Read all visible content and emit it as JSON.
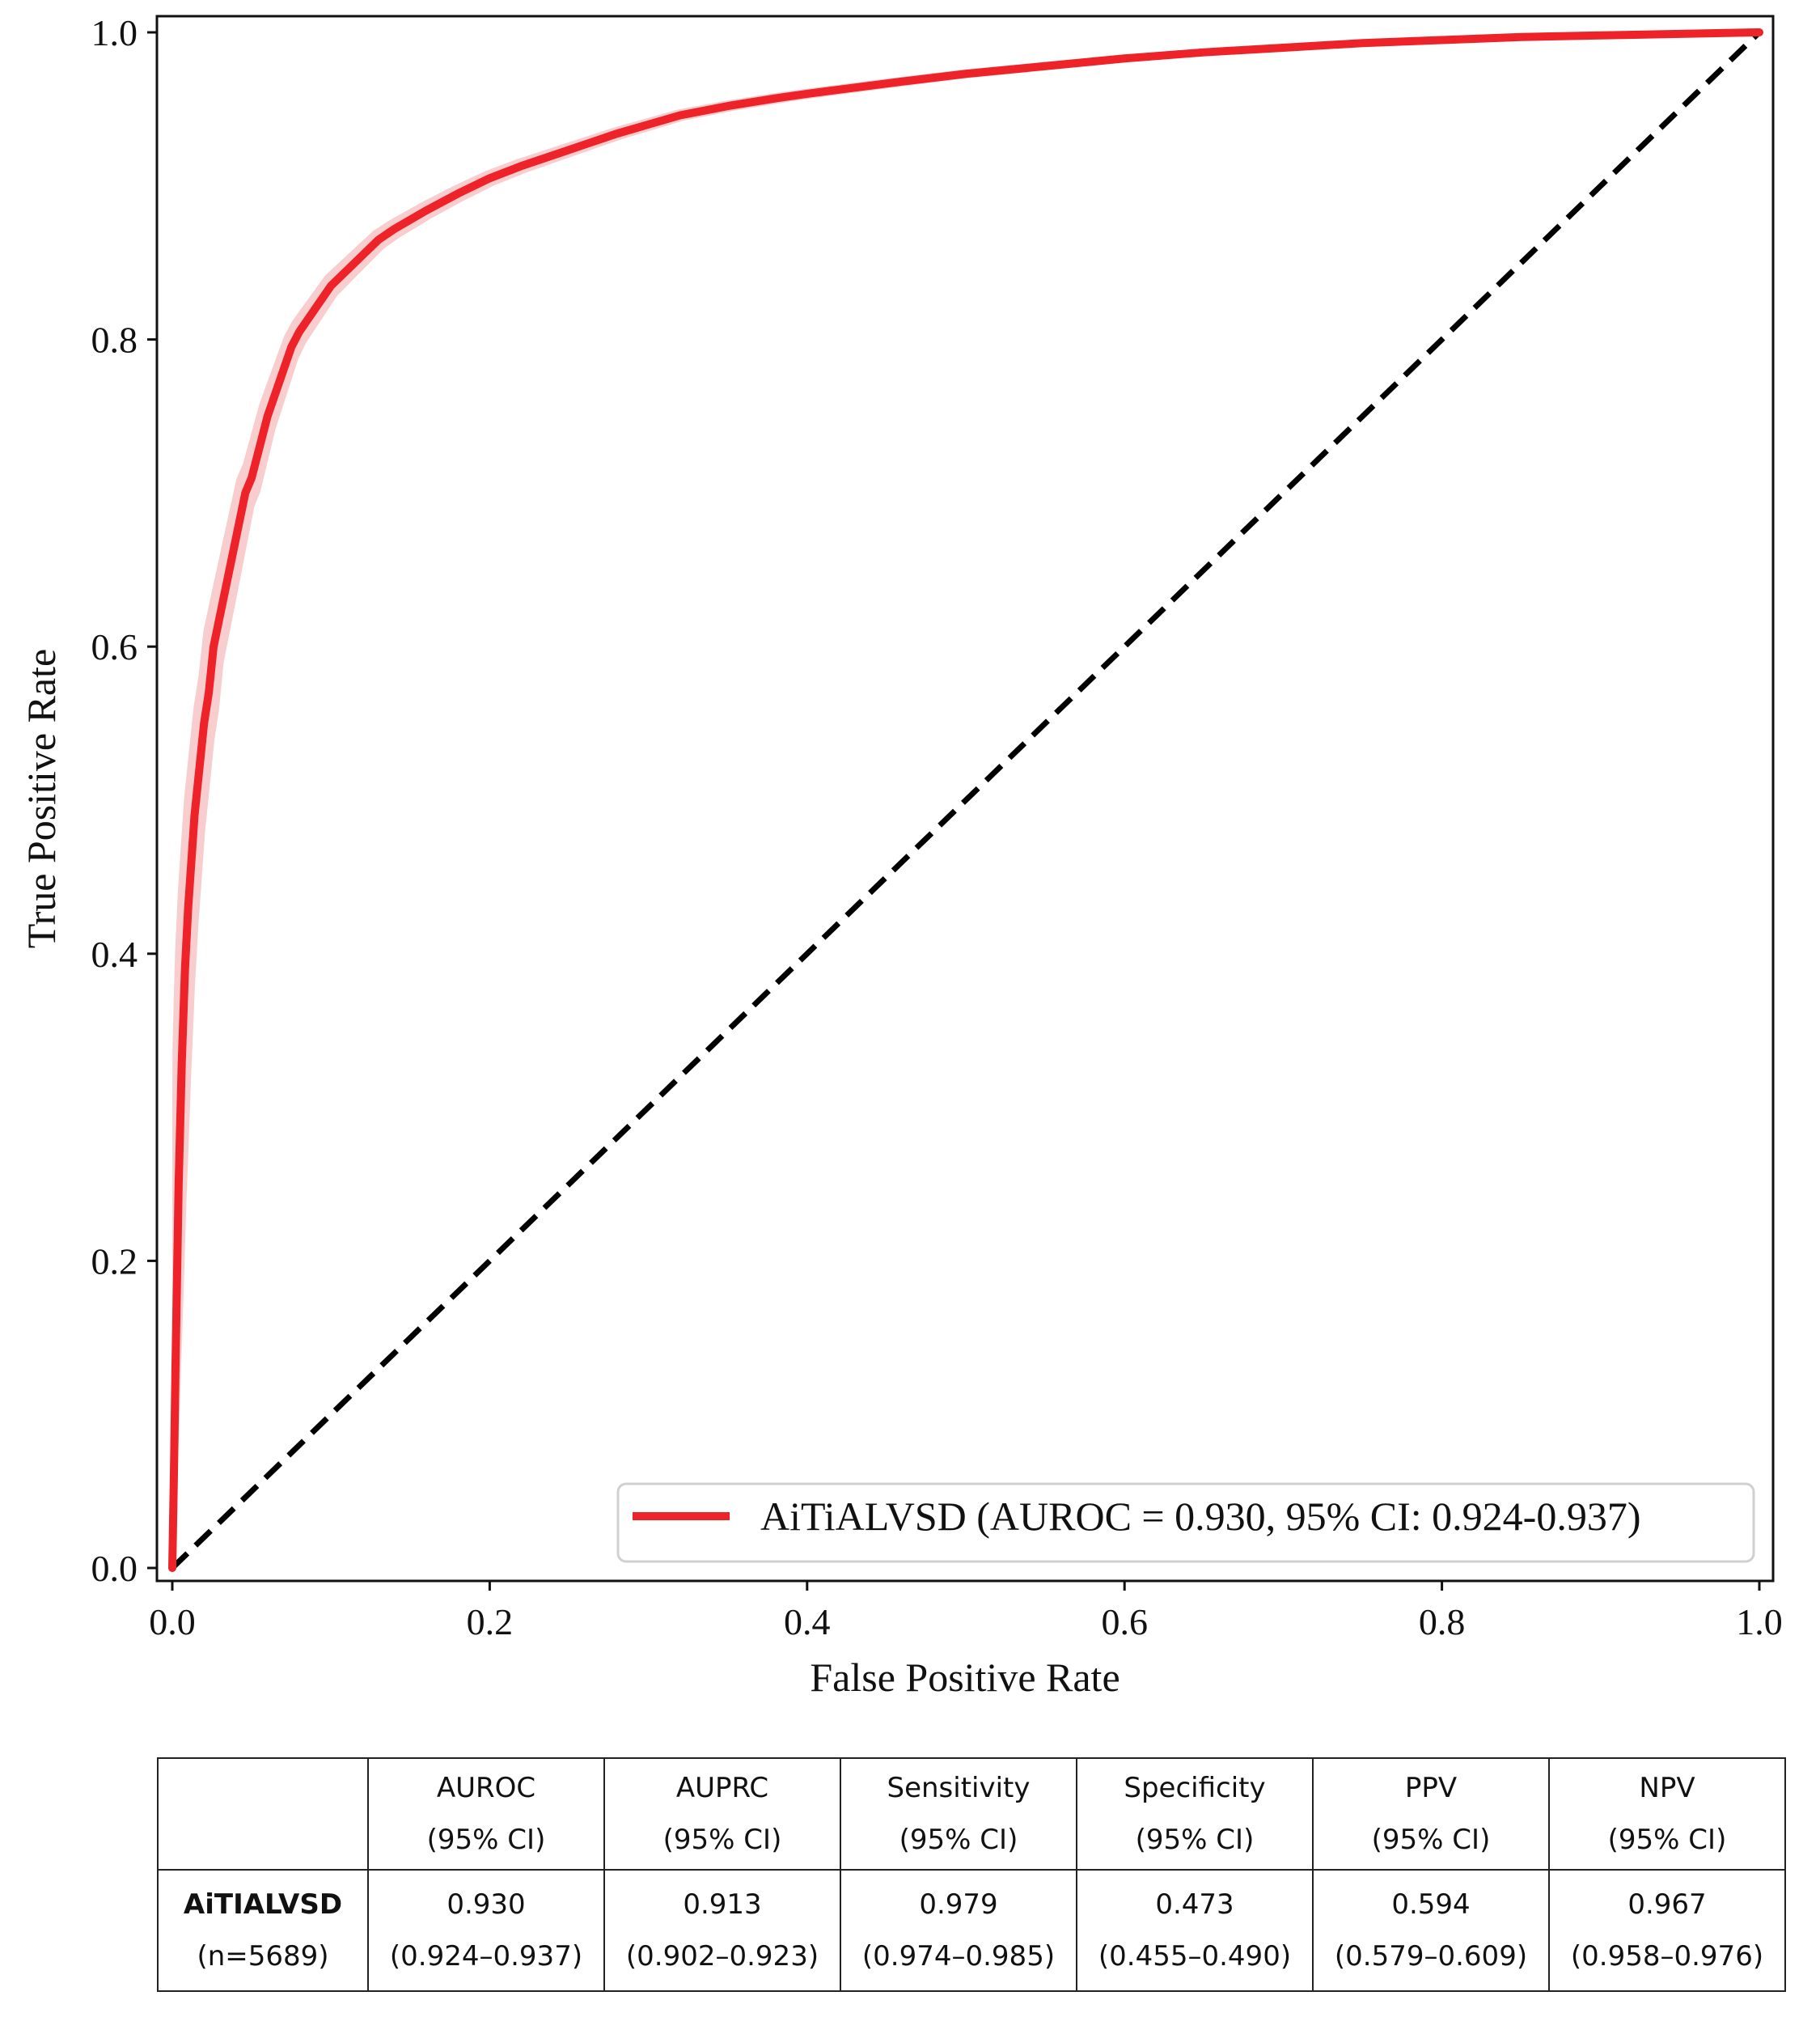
{
  "chart_data": {
    "type": "line",
    "xlabel": "False Positive Rate",
    "ylabel": "True Positive Rate",
    "xlim": [
      0.0,
      1.0
    ],
    "ylim": [
      0.0,
      1.0
    ],
    "xticks": [
      "0.0",
      "0.2",
      "0.4",
      "0.6",
      "0.8",
      "1.0"
    ],
    "yticks": [
      "0.0",
      "0.2",
      "0.4",
      "0.6",
      "0.8",
      "1.0"
    ],
    "legend_position": "bottom-right",
    "series": [
      {
        "name": "AiTiALVSD (AUROC = 0.930, 95% CI: 0.924-0.937)",
        "color": "#ee2229",
        "band_color": "#f6c4c6",
        "x": [
          0.0,
          0.001,
          0.002,
          0.003,
          0.004,
          0.005,
          0.006,
          0.007,
          0.008,
          0.009,
          0.01,
          0.012,
          0.014,
          0.016,
          0.018,
          0.02,
          0.023,
          0.026,
          0.03,
          0.034,
          0.038,
          0.042,
          0.046,
          0.05,
          0.055,
          0.06,
          0.065,
          0.07,
          0.075,
          0.08,
          0.09,
          0.1,
          0.11,
          0.12,
          0.13,
          0.14,
          0.15,
          0.16,
          0.18,
          0.2,
          0.22,
          0.24,
          0.26,
          0.28,
          0.3,
          0.32,
          0.35,
          0.38,
          0.4,
          0.43,
          0.46,
          0.5,
          0.55,
          0.6,
          0.65,
          0.7,
          0.75,
          0.8,
          0.85,
          0.9,
          0.95,
          1.0
        ],
        "y": [
          0.0,
          0.06,
          0.13,
          0.19,
          0.25,
          0.29,
          0.33,
          0.36,
          0.39,
          0.41,
          0.43,
          0.46,
          0.49,
          0.51,
          0.53,
          0.55,
          0.57,
          0.6,
          0.62,
          0.64,
          0.66,
          0.68,
          0.7,
          0.71,
          0.73,
          0.75,
          0.765,
          0.78,
          0.795,
          0.805,
          0.82,
          0.835,
          0.845,
          0.855,
          0.865,
          0.872,
          0.878,
          0.884,
          0.895,
          0.905,
          0.913,
          0.92,
          0.927,
          0.934,
          0.94,
          0.946,
          0.952,
          0.957,
          0.96,
          0.964,
          0.968,
          0.973,
          0.978,
          0.983,
          0.987,
          0.99,
          0.993,
          0.995,
          0.997,
          0.998,
          0.999,
          1.0
        ]
      },
      {
        "name": "chance",
        "color": "#000000",
        "style": "dashed",
        "x": [
          0.0,
          1.0
        ],
        "y": [
          0.0,
          1.0
        ]
      }
    ]
  },
  "legend": {
    "label": "AiTiALVSD (AUROC = 0.930, 95% CI: 0.924-0.937)"
  },
  "table": {
    "headers": [
      {
        "name": "AUROC",
        "ci": "(95% CI)"
      },
      {
        "name": "AUPRC",
        "ci": "(95% CI)"
      },
      {
        "name": "Sensitivity",
        "ci": "(95% CI)"
      },
      {
        "name": "Specificity",
        "ci": "(95% CI)"
      },
      {
        "name": "PPV",
        "ci": "(95% CI)"
      },
      {
        "name": "NPV",
        "ci": "(95% CI)"
      }
    ],
    "model": {
      "name": "AiTIALVSD",
      "n": "(n=5689)"
    },
    "values": [
      {
        "value": "0.930",
        "ci": "(0.924–0.937)"
      },
      {
        "value": "0.913",
        "ci": "(0.902–0.923)"
      },
      {
        "value": "0.979",
        "ci": "(0.974–0.985)"
      },
      {
        "value": "0.473",
        "ci": "(0.455–0.490)"
      },
      {
        "value": "0.594",
        "ci": "(0.579–0.609)"
      },
      {
        "value": "0.967",
        "ci": "(0.958–0.976)"
      }
    ]
  }
}
